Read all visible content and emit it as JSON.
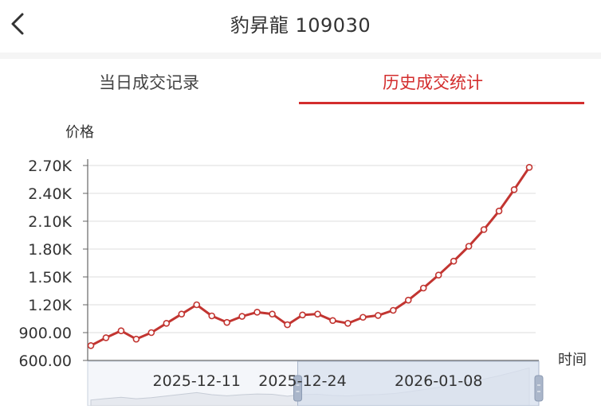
{
  "header": {
    "title": "豹昇龍 109030"
  },
  "tabs": [
    {
      "label": "当日成交记录",
      "active": false
    },
    {
      "label": "历史成交统计",
      "active": true
    }
  ],
  "colors": {
    "accent": "#d32d2d",
    "line": "#c23531",
    "grid": "#dcdcdc",
    "zoom_fill": "#d8e0ee"
  },
  "chart_data": {
    "type": "line",
    "ylabel": "价格",
    "xlabel": "时间",
    "ylim": [
      600,
      2700
    ],
    "y_ticks": [
      "2.70K",
      "2.40K",
      "2.10K",
      "1.80K",
      "1.50K",
      "1.20K",
      "900.00",
      "600.00"
    ],
    "y_tick_values": [
      2700,
      2400,
      2100,
      1800,
      1500,
      1200,
      900,
      600
    ],
    "x_tick_labels": [
      {
        "label": "2025-12-11",
        "index": 7
      },
      {
        "label": "2025-12-24",
        "index": 14
      },
      {
        "label": "2026-01-08",
        "index": 23
      }
    ],
    "series": [
      {
        "values": [
          760,
          845,
          920,
          830,
          900,
          1000,
          1100,
          1200,
          1080,
          1010,
          1075,
          1120,
          1100,
          985,
          1090,
          1100,
          1030,
          1000,
          1065,
          1085,
          1140,
          1250,
          1380,
          1520,
          1670,
          1830,
          2010,
          2210,
          2440,
          2680
        ]
      }
    ],
    "zoom": {
      "start_index": 14,
      "end_index": 29
    }
  }
}
